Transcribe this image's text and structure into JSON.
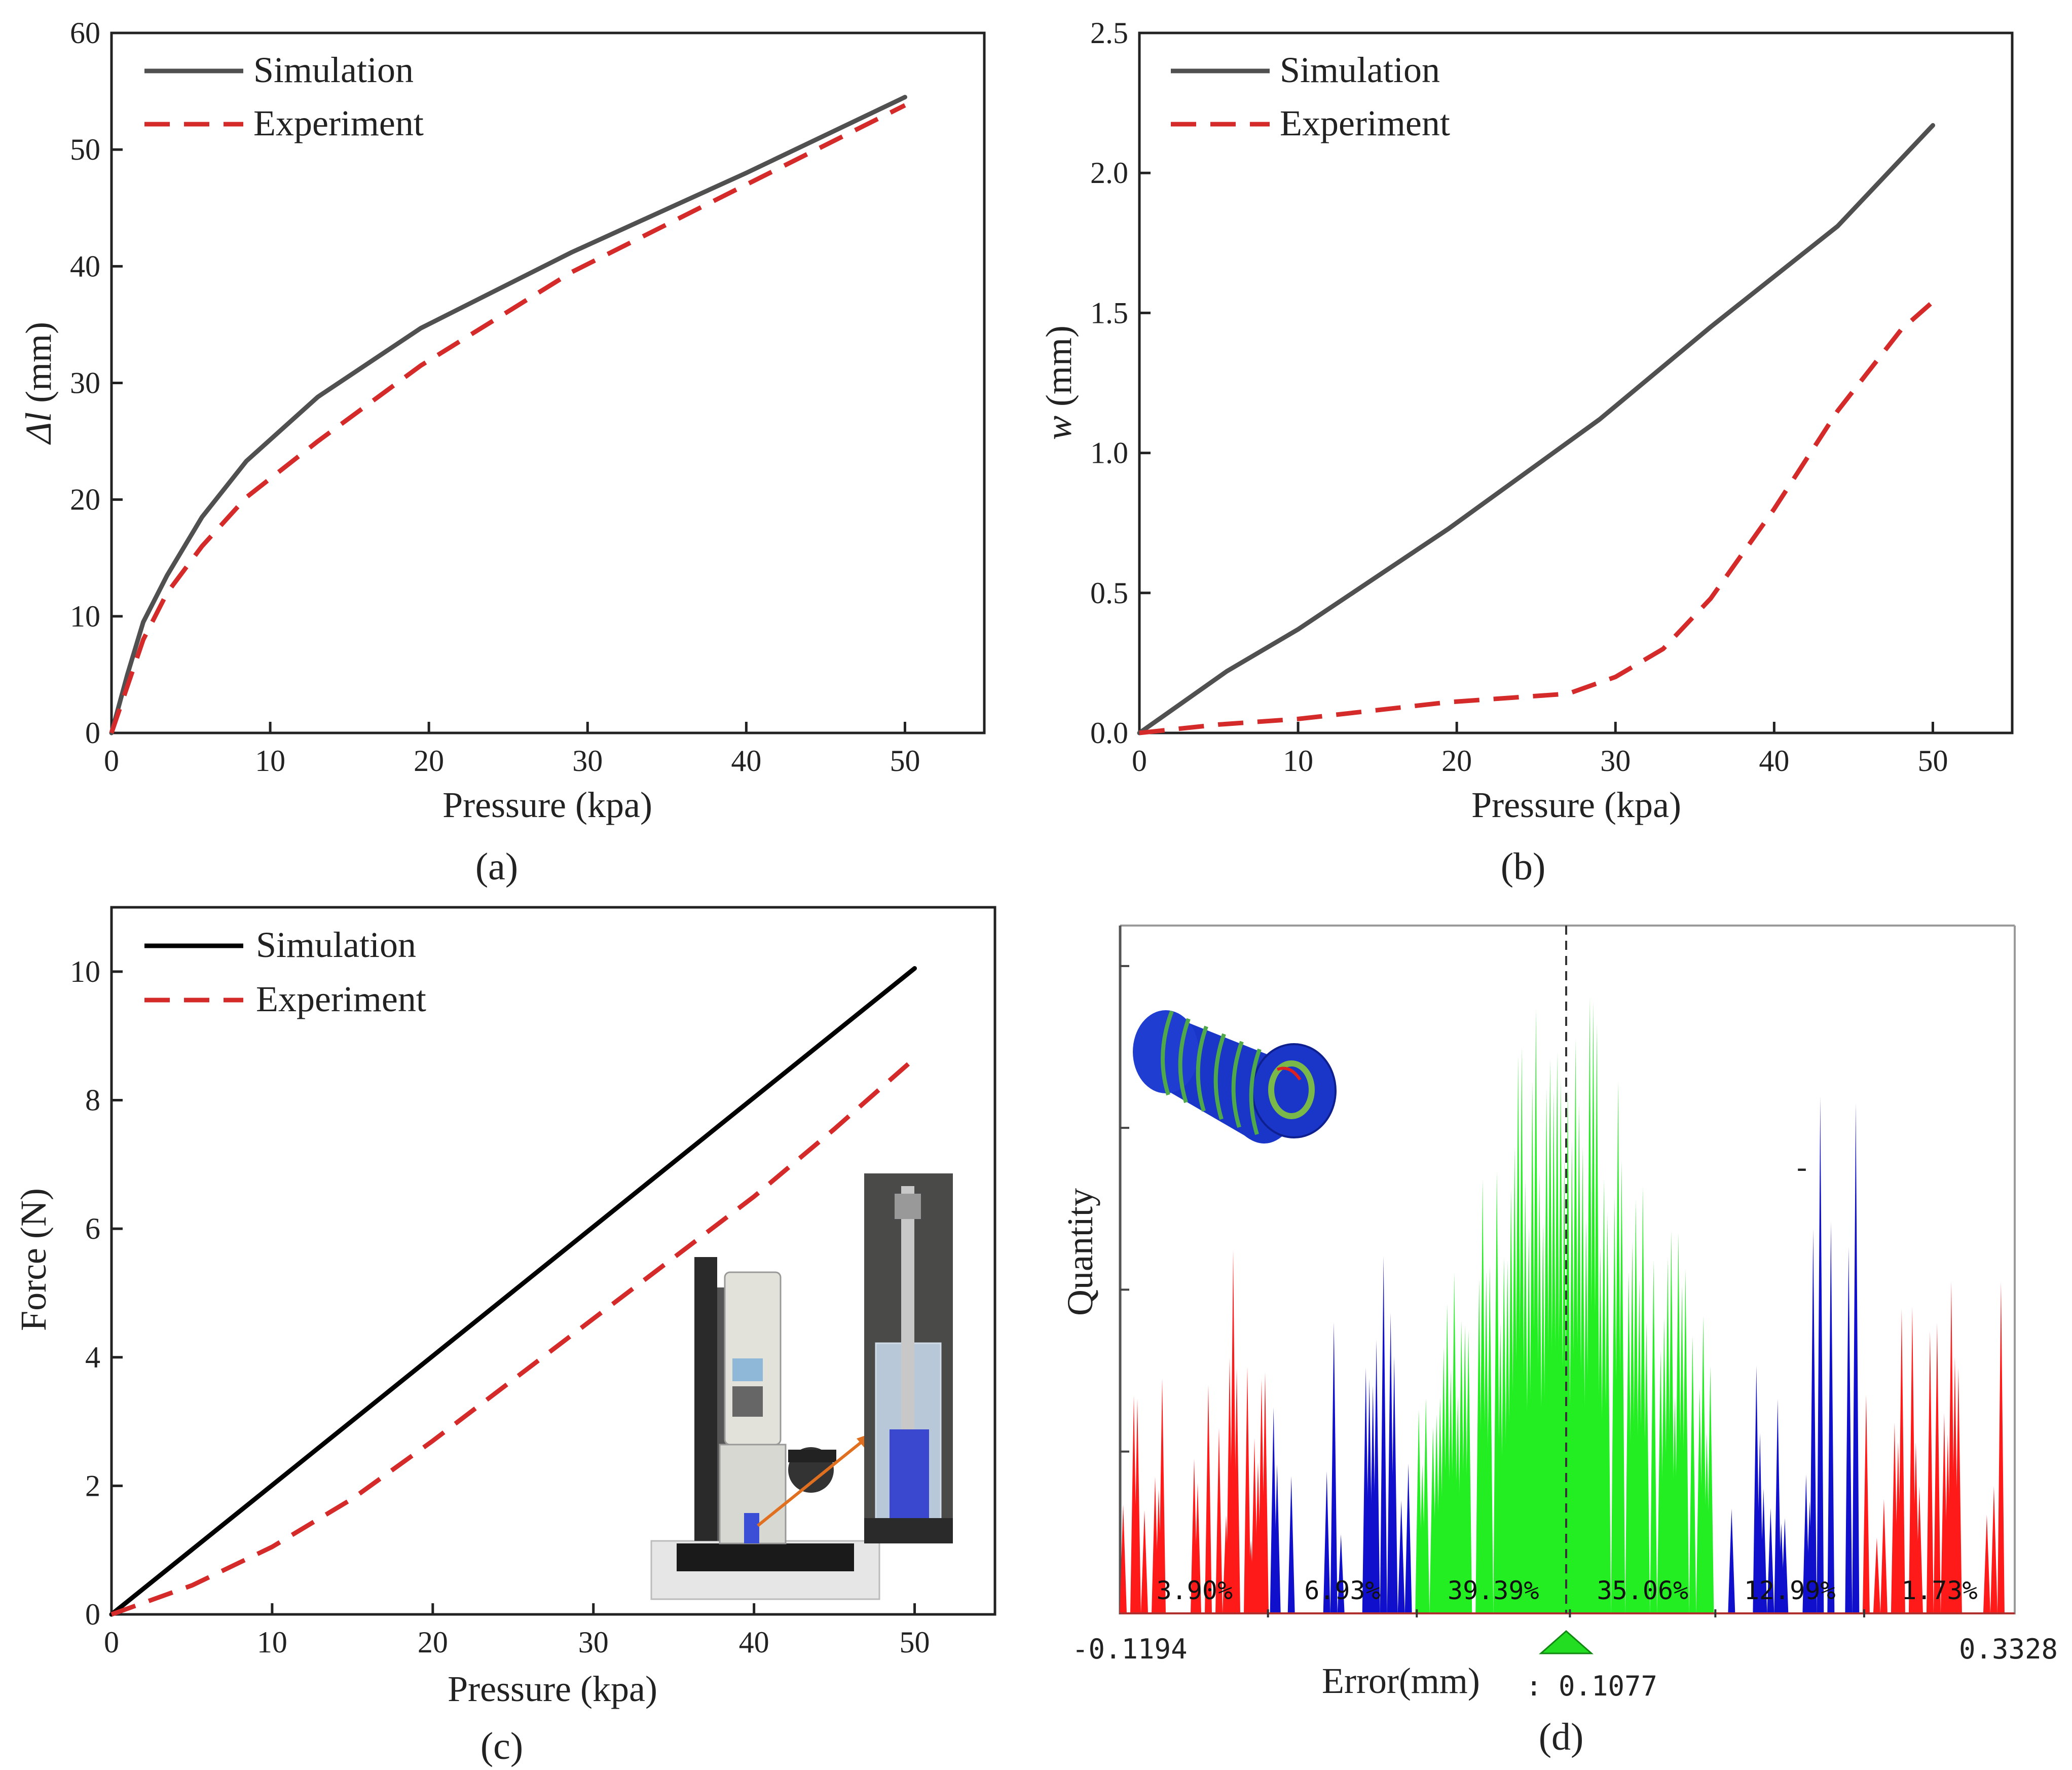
{
  "panels": {
    "a": {
      "caption": "(a)"
    },
    "b": {
      "caption": "(b)"
    },
    "c": {
      "caption": "(c)"
    },
    "d": {
      "caption": "(d)"
    }
  },
  "colors": {
    "simulation_gray": "#505050",
    "simulation_black": "#000000",
    "experiment_red": "#d42a2a",
    "hist_red": "#ff1a1a",
    "hist_blue": "#1010cc",
    "hist_green": "#22ee22",
    "cylinder_blue": "#1a36c8"
  },
  "chart_data": [
    {
      "id": "a",
      "type": "line",
      "title": "",
      "xlabel": "Pressure (kpa)",
      "ylabel_italic": "Δl",
      "ylabel_rest": " (mm)",
      "xlim": [
        0,
        55
      ],
      "ylim": [
        0,
        60
      ],
      "xticks": [
        0,
        10,
        20,
        30,
        40,
        50
      ],
      "yticks": [
        0,
        10,
        20,
        30,
        40,
        50,
        60
      ],
      "legend": [
        "Simulation",
        "Experiment"
      ],
      "legend_position": "top-left",
      "series": [
        {
          "name": "Simulation",
          "style": "solid",
          "color": "#505050",
          "points": [
            [
              0,
              0
            ],
            [
              1,
              5
            ],
            [
              2,
              9.5
            ],
            [
              3.5,
              13.5
            ],
            [
              5.7,
              18.5
            ],
            [
              8.5,
              23.3
            ],
            [
              13,
              28.8
            ],
            [
              19.5,
              34.7
            ],
            [
              29,
              41.2
            ],
            [
              40,
              48
            ],
            [
              50,
              54.5
            ]
          ]
        },
        {
          "name": "Experiment",
          "style": "dashed",
          "color": "#d42a2a",
          "points": [
            [
              0,
              0
            ],
            [
              1,
              4
            ],
            [
              2,
              8
            ],
            [
              3.5,
              12
            ],
            [
              5.7,
              16
            ],
            [
              8.5,
              20.2
            ],
            [
              13,
              25
            ],
            [
              19.5,
              31.5
            ],
            [
              29,
              39.5
            ],
            [
              40,
              47
            ],
            [
              50,
              53.8
            ]
          ]
        }
      ]
    },
    {
      "id": "b",
      "type": "line",
      "title": "",
      "xlabel": "Pressure (kpa)",
      "ylabel_italic": "w",
      "ylabel_rest": " (mm)",
      "xlim": [
        0,
        55
      ],
      "ylim": [
        0,
        2.5
      ],
      "xticks": [
        0,
        10,
        20,
        30,
        40,
        50
      ],
      "yticks": [
        0.0,
        0.5,
        1.0,
        1.5,
        2.0,
        2.5
      ],
      "ytick_labels": [
        "0.0",
        "0.5",
        "1.0",
        "1.5",
        "2.0",
        "2.5"
      ],
      "legend": [
        "Simulation",
        "Experiment"
      ],
      "legend_position": "top-left",
      "series": [
        {
          "name": "Simulation",
          "style": "solid",
          "color": "#505050",
          "points": [
            [
              0,
              0
            ],
            [
              2.5,
              0.1
            ],
            [
              5.5,
              0.22
            ],
            [
              10,
              0.37
            ],
            [
              19.5,
              0.73
            ],
            [
              29,
              1.12
            ],
            [
              36,
              1.45
            ],
            [
              44,
              1.81
            ],
            [
              50,
              2.17
            ]
          ]
        },
        {
          "name": "Experiment",
          "style": "dashed",
          "color": "#d42a2a",
          "points": [
            [
              0,
              0
            ],
            [
              5,
              0.03
            ],
            [
              10,
              0.05
            ],
            [
              19.5,
              0.11
            ],
            [
              27,
              0.14
            ],
            [
              30,
              0.2
            ],
            [
              33,
              0.3
            ],
            [
              36,
              0.48
            ],
            [
              40,
              0.8
            ],
            [
              44,
              1.15
            ],
            [
              48,
              1.44
            ],
            [
              50,
              1.54
            ]
          ]
        }
      ]
    },
    {
      "id": "c",
      "type": "line",
      "title": "",
      "xlabel": "Pressure (kpa)",
      "ylabel": "Force (N)",
      "xlim": [
        0,
        55
      ],
      "ylim": [
        0,
        11
      ],
      "xticks": [
        0,
        10,
        20,
        30,
        40,
        50
      ],
      "yticks": [
        0,
        2,
        4,
        6,
        8,
        10
      ],
      "legend": [
        "Simulation",
        "Experiment"
      ],
      "legend_position": "top-left",
      "inset": "photo of force gauge test stand with cylindrical sample",
      "series": [
        {
          "name": "Simulation",
          "style": "solid",
          "color": "#000000",
          "points": [
            [
              0,
              0
            ],
            [
              50,
              10.05
            ]
          ]
        },
        {
          "name": "Experiment",
          "style": "dashed",
          "color": "#d42a2a",
          "points": [
            [
              0,
              0
            ],
            [
              5,
              0.45
            ],
            [
              10,
              1.05
            ],
            [
              15,
              1.8
            ],
            [
              20,
              2.7
            ],
            [
              25,
              3.65
            ],
            [
              30,
              4.6
            ],
            [
              35,
              5.55
            ],
            [
              40,
              6.5
            ],
            [
              45,
              7.55
            ],
            [
              50,
              8.65
            ]
          ]
        }
      ]
    },
    {
      "id": "d",
      "type": "histogram",
      "title": "",
      "xlabel": "Error(mm)",
      "ylabel": "Quantity",
      "x_min_label": "-0.1194",
      "x_max_label": "0.3328",
      "x_range": [
        -0.1194,
        0.3328
      ],
      "mean_marker_label": "0.1077",
      "mean_marker_prefix": ":",
      "dash_mark": "-",
      "mean": 0.1077,
      "y_ticks_unlabeled": 4,
      "segments": [
        {
          "label": "3.90%",
          "color": "red",
          "x0": -0.1194,
          "x1": -0.0451
        },
        {
          "label": "6.93%",
          "color": "blue",
          "x0": -0.0451,
          "x1": 0.0302
        },
        {
          "label": "39.39%",
          "color": "green",
          "x0": 0.0302,
          "x1": 0.1077
        },
        {
          "label": "35.06%",
          "color": "green",
          "x0": 0.1077,
          "x1": 0.1813
        },
        {
          "label": "12.99%",
          "color": "blue",
          "x0": 0.1813,
          "x1": 0.2566
        },
        {
          "label": "1.73%",
          "color": "red",
          "x0": 0.2566,
          "x1": 0.3328
        }
      ]
    }
  ]
}
